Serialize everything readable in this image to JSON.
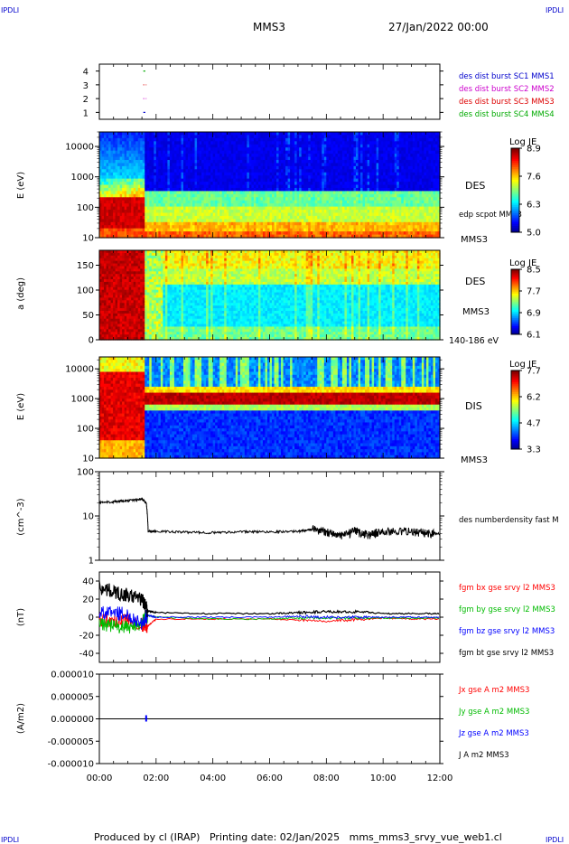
{
  "corner_labels": {
    "tl": "IPDLI",
    "tr": "IPDLI",
    "bl": "IPDLI",
    "br": "IPDLI"
  },
  "header": {
    "title": "MMS3",
    "date": "27/Jan/2022 00:00"
  },
  "footer": {
    "text": "Produced by cl (IRAP)   Printing date: 02/Jan/2025   mms_mms3_srvy_vue_web1.cl"
  },
  "colors": {
    "mms1": "#0000cc",
    "mms2": "#cc00cc",
    "mms3": "#dd0000",
    "mms4": "#00aa00",
    "black": "#000000",
    "bx": "#ff0000",
    "by": "#00bb00",
    "bz": "#0000ff"
  },
  "chart_data": [
    {
      "type": "line",
      "panel": "availability",
      "yticks": [
        "4",
        "3",
        "2",
        "1"
      ],
      "ylim": [
        0.5,
        4.5
      ],
      "legend": [
        "des dist burst SC1 MMS1",
        "des dist burst SC2 MMS2",
        "des dist burst SC3 MMS3",
        "des dist burst SC4 MMS4"
      ],
      "series": [
        {
          "name": "des dist burst SC1 MMS1",
          "y": 1,
          "segments": [
            [
              1.55,
              1.62
            ]
          ]
        },
        {
          "name": "des dist burst SC2 MMS2",
          "y": 2,
          "segments": [
            [
              1.55,
              1.58
            ],
            [
              1.64,
              1.66
            ]
          ]
        },
        {
          "name": "des dist burst SC3 MMS3",
          "y": 3,
          "segments": [
            [
              1.55,
              1.58
            ],
            [
              1.64,
              1.66
            ]
          ]
        },
        {
          "name": "des dist burst SC4 MMS4",
          "y": 4,
          "segments": [
            [
              1.55,
              1.62
            ]
          ]
        }
      ]
    },
    {
      "type": "heatmap",
      "panel": "des-energy",
      "ylabel": "E (eV)",
      "yticks": [
        "10",
        "100",
        "1000",
        "10000"
      ],
      "ylim": [
        10,
        30000
      ],
      "label": "DES",
      "sublabel": "MMS3",
      "extra_label": "edp scpot MMS3",
      "colorbar": {
        "title": "Log JE",
        "ticks": [
          "8.9",
          "7.6",
          "6.3",
          "5.0"
        ],
        "range": [
          5.0,
          8.9
        ]
      }
    },
    {
      "type": "heatmap",
      "panel": "des-pitch",
      "ylabel": "a (deg)",
      "yticks": [
        "0",
        "50",
        "100",
        "150"
      ],
      "ylim": [
        0,
        180
      ],
      "label": "DES",
      "sublabel": "MMS3",
      "energy_band": "140-186 eV",
      "colorbar": {
        "title": "Log JE",
        "ticks": [
          "8.5",
          "7.7",
          "6.9",
          "6.1"
        ],
        "range": [
          6.1,
          8.5
        ]
      }
    },
    {
      "type": "heatmap",
      "panel": "dis-energy",
      "ylabel": "E (eV)",
      "yticks": [
        "10",
        "100",
        "1000",
        "10000"
      ],
      "ylim": [
        10,
        25000
      ],
      "label": "DIS",
      "sublabel": "MMS3",
      "colorbar": {
        "title": "Log JE",
        "ticks": [
          "7.7",
          "6.2",
          "4.7",
          "3.3"
        ],
        "range": [
          3.3,
          7.7
        ]
      }
    },
    {
      "type": "line",
      "panel": "density",
      "ylabel": "(cm^-3)",
      "yticks": [
        "1",
        "10",
        "100"
      ],
      "ylim": [
        1,
        100
      ],
      "legend": [
        "des numberdensity fast M"
      ],
      "series": [
        {
          "name": "des numberdensity fast M",
          "x": [
            0,
            0.5,
            1.0,
            1.5,
            1.65,
            1.72,
            2.0,
            3.0,
            4.0,
            5.0,
            6.0,
            7.0,
            7.5,
            8.0,
            8.5,
            9.0,
            9.5,
            10.0,
            11.0,
            11.5,
            12.0
          ],
          "y": [
            20,
            21,
            22,
            24,
            20,
            4.5,
            4.5,
            4.3,
            4.2,
            4.4,
            4.4,
            4.5,
            5,
            4.5,
            3.5,
            4.5,
            3.8,
            4.5,
            4.5,
            4.2,
            4.0
          ]
        }
      ]
    },
    {
      "type": "line",
      "panel": "magnetic-field",
      "ylabel": "(nT)",
      "yticks": [
        "-40",
        "-20",
        "0",
        "20",
        "40"
      ],
      "ylim": [
        -50,
        50
      ],
      "legend": [
        "fgm bx gse srvy l2 MMS3",
        "fgm by gse srvy l2 MMS3",
        "fgm bz gse srvy l2 MMS3",
        "fgm bt gse srvy l2 MMS3"
      ],
      "series": [
        {
          "name": "fgm bx gse srvy l2 MMS3",
          "x": [
            0,
            0.5,
            1.0,
            1.5,
            1.7,
            2.0,
            4.0,
            6.0,
            7.0,
            8.0,
            9.0,
            10.0,
            11.0,
            12.0
          ],
          "y": [
            -2,
            -4,
            -2,
            -8,
            -10,
            -2,
            -2,
            -2,
            -3,
            -4,
            -3,
            -1,
            -2,
            -2
          ]
        },
        {
          "name": "fgm by gse srvy l2 MMS3",
          "x": [
            0,
            0.5,
            1.0,
            1.5,
            1.7,
            2.0,
            4.0,
            6.0,
            7.0,
            8.0,
            9.0,
            10.0,
            11.0,
            12.0
          ],
          "y": [
            -6,
            -10,
            -12,
            -6,
            2,
            0,
            -2,
            -2,
            -1,
            -1,
            -1,
            -1,
            -1,
            -1
          ]
        },
        {
          "name": "fgm bz gse srvy l2 MMS3",
          "x": [
            0,
            0.5,
            1.0,
            1.5,
            1.7,
            2.0,
            4.0,
            6.0,
            7.0,
            8.0,
            9.0,
            10.0,
            11.0,
            12.0
          ],
          "y": [
            4,
            6,
            2,
            -6,
            2,
            0,
            0,
            0,
            1,
            0,
            0,
            0,
            0,
            0
          ]
        },
        {
          "name": "fgm bt gse srvy l2 MMS3",
          "x": [
            0,
            0.5,
            1.0,
            1.5,
            1.7,
            2.0,
            4.0,
            6.0,
            7.0,
            8.0,
            9.0,
            10.0,
            11.0,
            12.0
          ],
          "y": [
            33,
            28,
            24,
            20,
            7,
            5,
            4,
            4,
            5,
            6,
            6,
            4,
            4,
            4
          ]
        }
      ]
    },
    {
      "type": "line",
      "panel": "current-density",
      "ylabel": "(A/m2)",
      "yticks": [
        "-0.000010",
        "-0.000005",
        "0.000000",
        "0.000005",
        "0.000010"
      ],
      "ylim": [
        -1e-05,
        1e-05
      ],
      "legend": [
        "Jx gse A m2 MMS3",
        "Jy gse A m2 MMS3",
        "Jz gse A m2 MMS3",
        "J A m2 MMS3"
      ],
      "series": [
        {
          "name": "Jx gse A m2 MMS3",
          "x": [
            0,
            12
          ],
          "y": [
            0,
            0
          ]
        },
        {
          "name": "Jy gse A m2 MMS3",
          "x": [
            0,
            12
          ],
          "y": [
            0,
            0
          ]
        },
        {
          "name": "Jz gse A m2 MMS3",
          "x": [
            0,
            1.6,
            1.65,
            1.7,
            12
          ],
          "y": [
            0,
            0,
            2e-07,
            0,
            0
          ]
        },
        {
          "name": "J A m2 MMS3",
          "x": [
            0,
            12
          ],
          "y": [
            0,
            0
          ]
        }
      ]
    }
  ],
  "xaxis": {
    "ticks": [
      "00:00",
      "02:00",
      "04:00",
      "06:00",
      "08:00",
      "10:00",
      "12:00"
    ],
    "xlim": [
      0,
      12
    ]
  }
}
